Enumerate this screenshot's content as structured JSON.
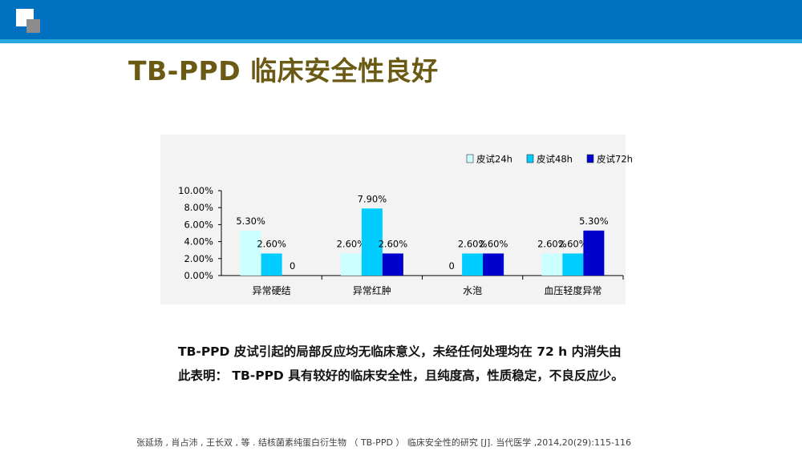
{
  "slide": {
    "title": "TB-PPD 临床安全性良好",
    "summary": "TB-PPD 皮试引起的局部反应均无临床意义，未经任何处理均在 72 h 内消失由此表明： TB-PPD 具有较好的临床安全性，且纯度高，性质稳定，不良反应少。",
    "reference": "张延炀 , 肖占沛 , 王长双 , 等 . 结核菌素纯蛋白衍生物 （ TB-PPD ） 临床安全性的研究 [J]. 当代医学 ,2014,20(29):115-116"
  },
  "chart_data": {
    "type": "bar",
    "categories": [
      "异常硬结",
      "异常红肿",
      "水泡",
      "血压轻度异常"
    ],
    "series": [
      {
        "name": "皮试24h",
        "color": "#ccffff",
        "values": [
          5.3,
          2.6,
          0,
          2.6
        ],
        "labels": [
          "5.30%",
          "2.60%",
          "0",
          "2.60%"
        ]
      },
      {
        "name": "皮试48h",
        "color": "#00ccff",
        "values": [
          2.6,
          7.9,
          2.6,
          2.6
        ],
        "labels": [
          "2.60%",
          "7.90%",
          "2.60%",
          "2.60%"
        ]
      },
      {
        "name": "皮试72h",
        "color": "#0000cc",
        "values": [
          0,
          2.6,
          2.6,
          5.3
        ],
        "labels": [
          "0",
          "2.60%",
          "2.60%",
          "5.30%"
        ]
      }
    ],
    "yticks": [
      "0.00%",
      "2.00%",
      "4.00%",
      "6.00%",
      "8.00%",
      "10.00%"
    ],
    "ylim": [
      0,
      10
    ],
    "legend_position": "top-right",
    "grid": false
  }
}
